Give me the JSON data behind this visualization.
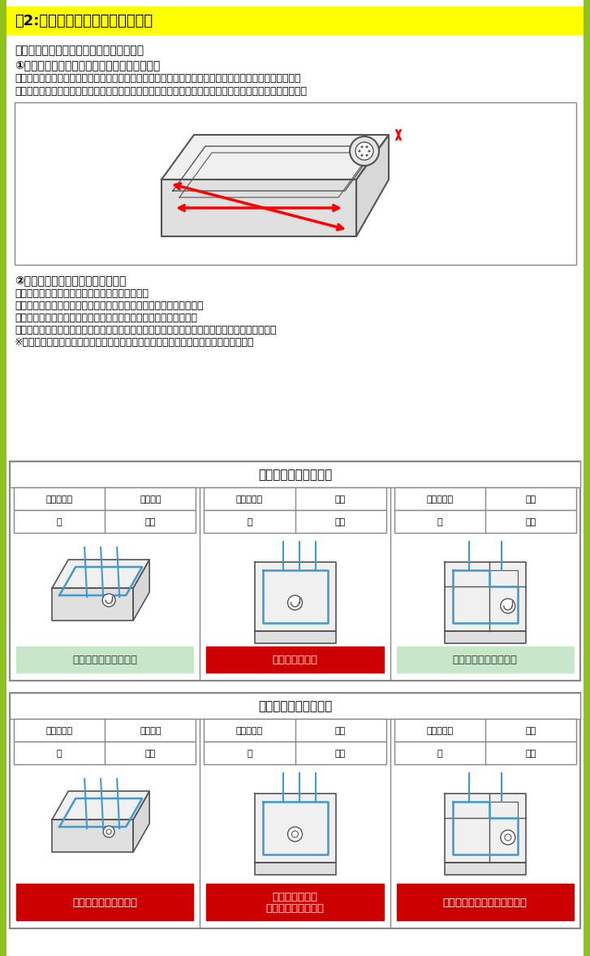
{
  "title_bar_text": "【2:設置場所をご確認ください】",
  "title_bar_color": "#FFFF00",
  "border_color": "#8DC21F",
  "bg_color": "#FFFFFF",
  "intro_text": "洗濯機を設置する場所をご確認ください。",
  "section1_title": "①防水フロア（防水パン）をご確認ください。",
  "section1_body": "マンションやアパートには、下記のようなプラスチック製の防水フロアを使用している場合があります。\n設置場所に防水フロアがあるか、また、ご購入の機種が防水フロア内に収まるか、内径をご確認ください。",
  "section2_title": "②排水口の位置をご確認ください。",
  "section2_body": "防水フロアにはさまざまなタイプがございます。\n排水口の位置等によっては別途部品が必要になる場合がございます。\n設置に必要な別途部品は予めお客様にてご用意をお願い致します。\n設置に必要な別途部品をご用意頂けていない場合には、設置が完了できない場合がございます。\n※商品開梱後の交換・返品はいたしかねます。必ず設置場所を事前にご確認ください。",
  "table1_header": "排水エルボがある場合",
  "table2_header": "排水エルボがない場合",
  "col_labels": [
    [
      "排水口位置",
      "真下以外",
      "台",
      "なし"
    ],
    [
      "排水口位置",
      "真下",
      "台",
      "なし"
    ],
    [
      "排水口位置",
      "真下",
      "台",
      "あり"
    ]
  ],
  "table1_results": [
    "そのまま設置できます",
    "足台が必要です",
    "そのまま設置できます"
  ],
  "table2_results": [
    "排水エルボが必要です",
    "真下排水ユニットと\n足台が必要です",
    "真下排水ユニットが必要です"
  ],
  "result_colors_table1": [
    "#C8E6C9",
    "#CC0000",
    "#C8E6C9"
  ],
  "result_colors_table2": [
    "#CC0000",
    "#CC0000",
    "#CC0000"
  ],
  "result_text_colors_table1": [
    "#333333",
    "#FFFFFF",
    "#333333"
  ],
  "result_text_colors_table2": [
    "#FFFFFF",
    "#FFFFFF",
    "#FFFFFF"
  ],
  "cell_border_color": "#888888",
  "table_border_color": "#888888",
  "blue_line_color": "#4499CC",
  "diagram_line_color": "#555555"
}
